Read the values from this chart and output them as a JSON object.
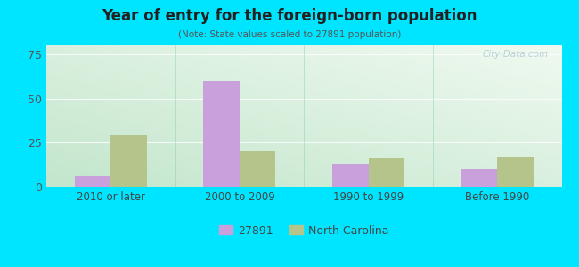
{
  "title": "Year of entry for the foreign-born population",
  "subtitle": "(Note: State values scaled to 27891 population)",
  "categories": [
    "2010 or later",
    "2000 to 2009",
    "1990 to 1999",
    "Before 1990"
  ],
  "values_27891": [
    6,
    60,
    13,
    10
  ],
  "values_nc": [
    29,
    20,
    16,
    17
  ],
  "color_27891": "#c9a0dc",
  "color_nc": "#b5c48a",
  "background_outer": "#00e5ff",
  "ylim": [
    0,
    80
  ],
  "yticks": [
    0,
    25,
    50,
    75
  ],
  "bar_width": 0.28,
  "legend_label_27891": "27891",
  "legend_label_nc": "North Carolina",
  "watermark": "City-Data.com"
}
